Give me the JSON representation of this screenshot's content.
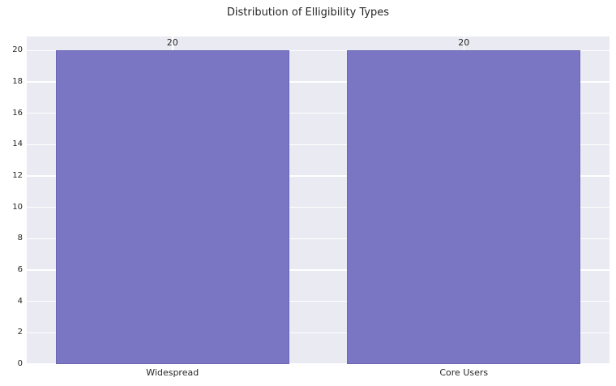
{
  "chart_data": {
    "type": "bar",
    "title": "Distribution of Elligibility Types",
    "categories": [
      "Widespread",
      "Core Users"
    ],
    "values": [
      20,
      20
    ],
    "bar_value_labels": [
      "20",
      "20"
    ],
    "xlabel": "",
    "ylabel": "",
    "ylim": [
      0,
      20.9
    ],
    "yticks": [
      0,
      2,
      4,
      6,
      8,
      10,
      12,
      14,
      16,
      18,
      20
    ],
    "grid": "on",
    "legend_position": "none",
    "bar_width_fraction": 0.8,
    "colors": {
      "bar": "#7b76c3",
      "bar_edge": "rgba(90,85,160,0.45)",
      "plot_background": "#eaeaf2",
      "gridline": "#ffffff",
      "text": "#262626",
      "page_background": "#ffffff"
    }
  }
}
